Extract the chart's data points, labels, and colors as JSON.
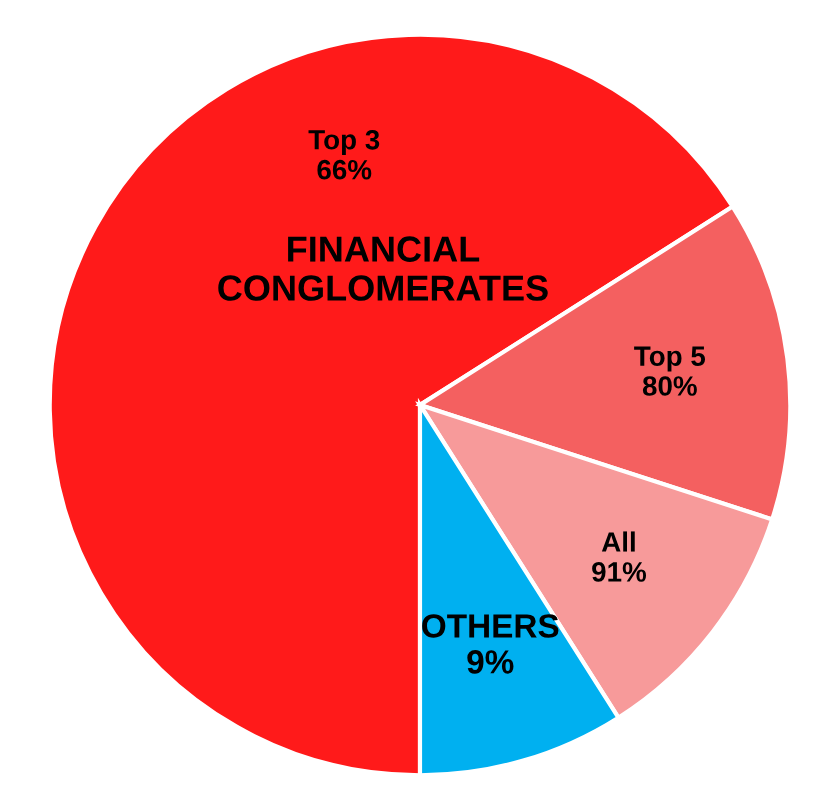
{
  "chart_data": {
    "type": "pie",
    "categories": [
      "Top 3\n66%",
      "Top 5\n80%",
      "All\n91%",
      "OTHERS\n9%"
    ],
    "values": [
      66,
      14,
      11,
      9
    ],
    "colors": [
      "#ff1a1a",
      "#f46060",
      "#f79a9a",
      "#00b0f0"
    ],
    "annotations": [
      "FINANCIAL\nCONGLOMERATES"
    ]
  }
}
